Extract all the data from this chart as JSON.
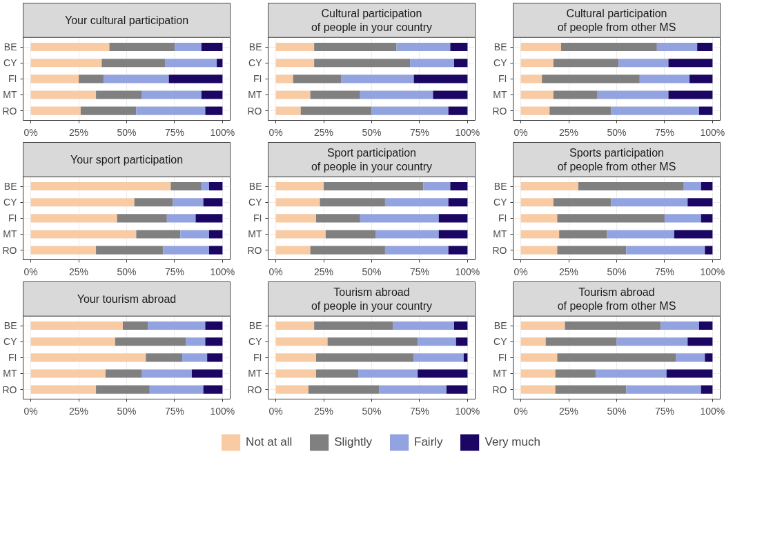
{
  "chart_data": [
    {
      "type": "bar",
      "orientation": "horizontal",
      "stacked": true,
      "title": "Your cultural participation",
      "categories": [
        "BE",
        "CY",
        "FI",
        "MT",
        "RO"
      ],
      "xlim": [
        -4,
        104
      ],
      "xticks": [
        {
          "value": 0,
          "label": "0%"
        },
        {
          "value": 25,
          "label": "25%"
        },
        {
          "value": 50,
          "label": "50%"
        },
        {
          "value": 75,
          "label": "75%"
        },
        {
          "value": 100,
          "label": "100%"
        }
      ],
      "grid": true,
      "legend": "bottom",
      "series": [
        {
          "name": "Not at all",
          "color": "#f9cba5",
          "values": [
            41,
            37,
            25,
            34,
            26
          ]
        },
        {
          "name": "Slightly",
          "color": "#808080",
          "values": [
            34,
            33,
            13,
            24,
            29
          ]
        },
        {
          "name": "Fairly",
          "color": "#93a3e0",
          "values": [
            14,
            27,
            34,
            31,
            36
          ]
        },
        {
          "name": "Very much",
          "color": "#1b0763",
          "values": [
            11,
            3,
            28,
            11,
            9
          ]
        }
      ]
    },
    {
      "type": "bar",
      "orientation": "horizontal",
      "stacked": true,
      "title": "Cultural participation\nof people in your country",
      "categories": [
        "BE",
        "CY",
        "FI",
        "MT",
        "RO"
      ],
      "xlim": [
        -4,
        104
      ],
      "xticks": [
        {
          "value": 0,
          "label": "0%"
        },
        {
          "value": 25,
          "label": "25%"
        },
        {
          "value": 50,
          "label": "50%"
        },
        {
          "value": 75,
          "label": "75%"
        },
        {
          "value": 100,
          "label": "100%"
        }
      ],
      "grid": true,
      "series": [
        {
          "color": "#f9cba5",
          "values": [
            20,
            20,
            9,
            18,
            13
          ]
        },
        {
          "color": "#808080",
          "values": [
            43,
            50,
            25,
            26,
            37
          ]
        },
        {
          "color": "#93a3e0",
          "values": [
            28,
            23,
            38,
            38,
            40
          ]
        },
        {
          "color": "#1b0763",
          "values": [
            9,
            7,
            28,
            18,
            10
          ]
        }
      ]
    },
    {
      "type": "bar",
      "orientation": "horizontal",
      "stacked": true,
      "title": "Cultural participation\nof people from other MS",
      "categories": [
        "BE",
        "CY",
        "FI",
        "MT",
        "RO"
      ],
      "xlim": [
        -4,
        104
      ],
      "xticks": [
        {
          "value": 0,
          "label": "0%"
        },
        {
          "value": 25,
          "label": "25%"
        },
        {
          "value": 50,
          "label": "50%"
        },
        {
          "value": 75,
          "label": "75%"
        },
        {
          "value": 100,
          "label": "100%"
        }
      ],
      "grid": true,
      "series": [
        {
          "color": "#f9cba5",
          "values": [
            21,
            17,
            11,
            17,
            15
          ]
        },
        {
          "color": "#808080",
          "values": [
            50,
            34,
            51,
            23,
            32
          ]
        },
        {
          "color": "#93a3e0",
          "values": [
            21,
            26,
            26,
            37,
            46
          ]
        },
        {
          "color": "#1b0763",
          "values": [
            8,
            23,
            12,
            23,
            7
          ]
        }
      ]
    },
    {
      "type": "bar",
      "orientation": "horizontal",
      "stacked": true,
      "title": "Your sport participation",
      "categories": [
        "BE",
        "CY",
        "FI",
        "MT",
        "RO"
      ],
      "xlim": [
        -4,
        104
      ],
      "xticks": [
        {
          "value": 0,
          "label": "0%"
        },
        {
          "value": 25,
          "label": "25%"
        },
        {
          "value": 50,
          "label": "50%"
        },
        {
          "value": 75,
          "label": "75%"
        },
        {
          "value": 100,
          "label": "100%"
        }
      ],
      "grid": true,
      "series": [
        {
          "color": "#f9cba5",
          "values": [
            73,
            54,
            45,
            55,
            34
          ]
        },
        {
          "color": "#808080",
          "values": [
            16,
            20,
            26,
            23,
            35
          ]
        },
        {
          "color": "#93a3e0",
          "values": [
            4,
            16,
            15,
            15,
            24
          ]
        },
        {
          "color": "#1b0763",
          "values": [
            7,
            10,
            14,
            7,
            7
          ]
        }
      ]
    },
    {
      "type": "bar",
      "orientation": "horizontal",
      "stacked": true,
      "title": "Sport participation\nof people in your country",
      "categories": [
        "BE",
        "CY",
        "FI",
        "MT",
        "RO"
      ],
      "xlim": [
        -4,
        104
      ],
      "xticks": [
        {
          "value": 0,
          "label": "0%"
        },
        {
          "value": 25,
          "label": "25%"
        },
        {
          "value": 50,
          "label": "50%"
        },
        {
          "value": 75,
          "label": "75%"
        },
        {
          "value": 100,
          "label": "100%"
        }
      ],
      "grid": true,
      "series": [
        {
          "color": "#f9cba5",
          "values": [
            25,
            23,
            21,
            26,
            18
          ]
        },
        {
          "color": "#808080",
          "values": [
            52,
            34,
            23,
            26,
            39
          ]
        },
        {
          "color": "#93a3e0",
          "values": [
            14,
            33,
            41,
            33,
            33
          ]
        },
        {
          "color": "#1b0763",
          "values": [
            9,
            10,
            15,
            15,
            10
          ]
        }
      ]
    },
    {
      "type": "bar",
      "orientation": "horizontal",
      "stacked": true,
      "title": "Sports participation\nof people from other MS",
      "categories": [
        "BE",
        "CY",
        "FI",
        "MT",
        "RO"
      ],
      "xlim": [
        -4,
        104
      ],
      "xticks": [
        {
          "value": 0,
          "label": "0%"
        },
        {
          "value": 25,
          "label": "25%"
        },
        {
          "value": 50,
          "label": "50%"
        },
        {
          "value": 75,
          "label": "75%"
        },
        {
          "value": 100,
          "label": "100%"
        }
      ],
      "grid": true,
      "series": [
        {
          "color": "#f9cba5",
          "values": [
            30,
            17,
            19,
            20,
            19
          ]
        },
        {
          "color": "#808080",
          "values": [
            55,
            30,
            56,
            25,
            36
          ]
        },
        {
          "color": "#93a3e0",
          "values": [
            9,
            40,
            19,
            35,
            41
          ]
        },
        {
          "color": "#1b0763",
          "values": [
            6,
            13,
            6,
            20,
            4
          ]
        }
      ]
    },
    {
      "type": "bar",
      "orientation": "horizontal",
      "stacked": true,
      "title": "Your tourism abroad",
      "categories": [
        "BE",
        "CY",
        "FI",
        "MT",
        "RO"
      ],
      "xlim": [
        -4,
        104
      ],
      "xticks": [
        {
          "value": 0,
          "label": "0%"
        },
        {
          "value": 25,
          "label": "25%"
        },
        {
          "value": 50,
          "label": "50%"
        },
        {
          "value": 75,
          "label": "75%"
        },
        {
          "value": 100,
          "label": "100%"
        }
      ],
      "grid": true,
      "series": [
        {
          "color": "#f9cba5",
          "values": [
            48,
            44,
            60,
            39,
            34
          ]
        },
        {
          "color": "#808080",
          "values": [
            13,
            37,
            19,
            19,
            28
          ]
        },
        {
          "color": "#93a3e0",
          "values": [
            30,
            10,
            13,
            26,
            28
          ]
        },
        {
          "color": "#1b0763",
          "values": [
            9,
            9,
            8,
            16,
            10
          ]
        }
      ]
    },
    {
      "type": "bar",
      "orientation": "horizontal",
      "stacked": true,
      "title": "Tourism abroad\nof people in your country",
      "categories": [
        "BE",
        "CY",
        "FI",
        "MT",
        "RO"
      ],
      "xlim": [
        -4,
        104
      ],
      "xticks": [
        {
          "value": 0,
          "label": "0%"
        },
        {
          "value": 25,
          "label": "25%"
        },
        {
          "value": 50,
          "label": "50%"
        },
        {
          "value": 75,
          "label": "75%"
        },
        {
          "value": 100,
          "label": "100%"
        }
      ],
      "grid": true,
      "series": [
        {
          "color": "#f9cba5",
          "values": [
            20,
            27,
            21,
            21,
            17
          ]
        },
        {
          "color": "#808080",
          "values": [
            41,
            47,
            51,
            22,
            37
          ]
        },
        {
          "color": "#93a3e0",
          "values": [
            32,
            20,
            26,
            31,
            35
          ]
        },
        {
          "color": "#1b0763",
          "values": [
            7,
            6,
            2,
            26,
            11
          ]
        }
      ]
    },
    {
      "type": "bar",
      "orientation": "horizontal",
      "stacked": true,
      "title": "Tourism abroad\nof people from other MS",
      "categories": [
        "BE",
        "CY",
        "FI",
        "MT",
        "RO"
      ],
      "xlim": [
        -4,
        104
      ],
      "xticks": [
        {
          "value": 0,
          "label": "0%"
        },
        {
          "value": 25,
          "label": "25%"
        },
        {
          "value": 50,
          "label": "50%"
        },
        {
          "value": 75,
          "label": "75%"
        },
        {
          "value": 100,
          "label": "100%"
        }
      ],
      "grid": true,
      "series": [
        {
          "color": "#f9cba5",
          "values": [
            23,
            13,
            19,
            18,
            18
          ]
        },
        {
          "color": "#808080",
          "values": [
            50,
            37,
            62,
            21,
            37
          ]
        },
        {
          "color": "#93a3e0",
          "values": [
            20,
            37,
            15,
            37,
            39
          ]
        },
        {
          "color": "#1b0763",
          "values": [
            7,
            13,
            4,
            24,
            6
          ]
        }
      ]
    }
  ]
}
